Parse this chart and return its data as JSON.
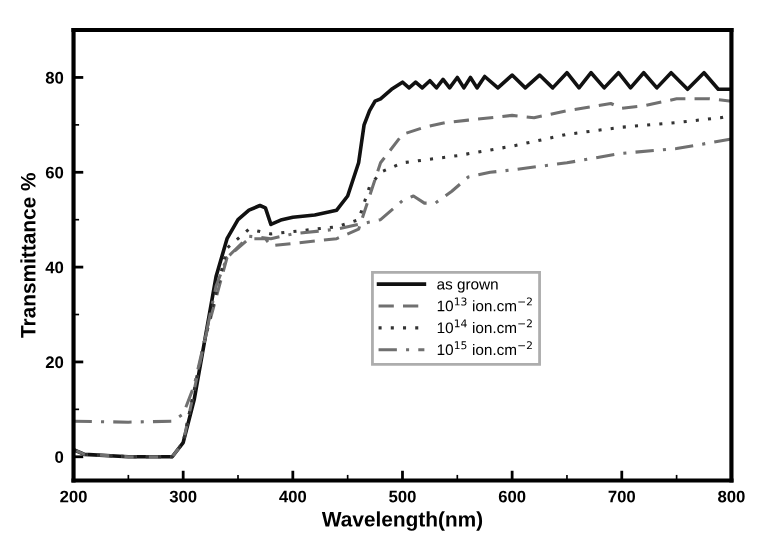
{
  "chart_data": {
    "type": "line",
    "xlabel": "Wavelength(nm)",
    "ylabel": "Transmittance %",
    "xlim": [
      200,
      800
    ],
    "ylim": [
      -5,
      90
    ],
    "xticks": [
      200,
      300,
      400,
      500,
      600,
      700,
      800
    ],
    "yticks": [
      0,
      20,
      40,
      60,
      80
    ],
    "grid": false,
    "legend": "right",
    "marker": "none",
    "series": [
      {
        "name": "as grown",
        "color": "#111111",
        "line_style": "solid",
        "x": [
          200,
          210,
          250,
          290,
          300,
          310,
          320,
          330,
          340,
          350,
          360,
          370,
          375,
          380,
          390,
          400,
          420,
          440,
          450,
          460,
          465,
          470,
          475,
          480,
          490,
          500,
          506,
          512,
          518,
          525,
          531,
          537,
          543,
          550,
          556,
          562,
          568,
          575,
          587,
          600,
          612,
          625,
          637,
          650,
          661,
          672,
          684,
          697,
          708,
          720,
          732,
          745,
          760,
          775,
          788,
          800
        ],
        "values": [
          1.5,
          0.5,
          0,
          0,
          3,
          12,
          25,
          38,
          46,
          50,
          52,
          53,
          52.5,
          49,
          50,
          50.5,
          51,
          52,
          55,
          62,
          70,
          73,
          75,
          75.5,
          77.5,
          79,
          77.8,
          79,
          77.8,
          79.3,
          77.8,
          79.6,
          77.8,
          80,
          77.8,
          80,
          77.8,
          80.2,
          77.8,
          80.5,
          77.8,
          80.5,
          77.8,
          81,
          77.8,
          81,
          77.8,
          81,
          77.8,
          81,
          77.8,
          81,
          77.5,
          81,
          77.5,
          77.5
        ]
      },
      {
        "name": "10$^{13}$ ion.cm$^{−2}$",
        "color": "#707070",
        "line_style": "dashed",
        "x": [
          200,
          210,
          250,
          290,
          300,
          320,
          340,
          360,
          375,
          380,
          400,
          440,
          460,
          470,
          480,
          500,
          520,
          540,
          560,
          600,
          620,
          650,
          690,
          700,
          720,
          750,
          780,
          800
        ],
        "values": [
          1.5,
          0.5,
          0,
          0,
          3,
          25,
          42,
          46,
          46,
          44.5,
          45,
          46,
          48,
          55,
          62,
          68,
          69.5,
          70.5,
          71,
          72,
          71.5,
          73,
          74.5,
          73.5,
          74,
          75.5,
          75.5,
          75
        ]
      },
      {
        "name": "10$^{14}$ ion.cm$^{−2}$",
        "color": "#333333",
        "line_style": "dotted",
        "x": [
          200,
          210,
          250,
          290,
          300,
          320,
          340,
          360,
          380,
          400,
          440,
          460,
          470,
          480,
          500,
          550,
          600,
          650,
          700,
          750,
          790,
          800
        ],
        "values": [
          1.5,
          0.5,
          0,
          0,
          3,
          25,
          44,
          48,
          47,
          47.5,
          48.5,
          50,
          57,
          60,
          62,
          63.5,
          65.5,
          68,
          69.5,
          70.5,
          71.5,
          72
        ]
      },
      {
        "name": "10$^{15}$ ion.cm$^{−2}$",
        "color": "#707070",
        "line_style": "dashdot",
        "x": [
          200,
          250,
          290,
          300,
          310,
          320,
          330,
          340,
          360,
          380,
          400,
          440,
          470,
          480,
          500,
          510,
          520,
          530,
          545,
          560,
          580,
          600,
          650,
          700,
          750,
          800
        ],
        "values": [
          7.5,
          7.3,
          7.5,
          9,
          15,
          25,
          36,
          42,
          46.5,
          46,
          47,
          48,
          49.5,
          50,
          54,
          55,
          53.5,
          53.5,
          56,
          59,
          60,
          60.5,
          62,
          64,
          65,
          67
        ]
      }
    ]
  }
}
